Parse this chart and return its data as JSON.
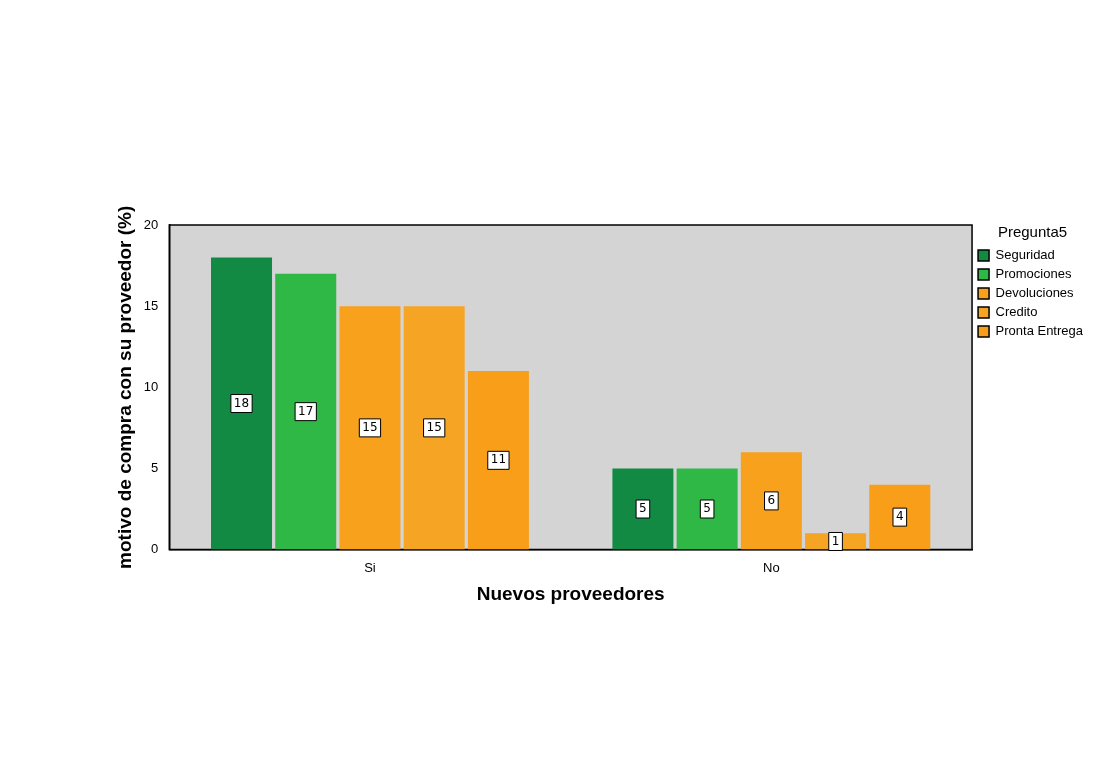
{
  "chart_data": {
    "type": "bar",
    "xlabel": "Nuevos proveedores",
    "ylabel": "motivo de compra con su proveedor (%)",
    "legend_title": "Pregunta5",
    "categories": [
      "Si",
      "No"
    ],
    "series": [
      {
        "name": "Seguridad",
        "color": "#138a43",
        "values": [
          18,
          5
        ]
      },
      {
        "name": "Promociones",
        "color": "#2fb845",
        "values": [
          17,
          5
        ]
      },
      {
        "name": "Devoluciones",
        "color": "#f7a11d",
        "values": [
          15,
          6
        ]
      },
      {
        "name": "Credito",
        "color": "#f5a423",
        "values": [
          15,
          1
        ]
      },
      {
        "name": "Pronta Entrega",
        "color": "#f99e19",
        "values": [
          11,
          4
        ]
      }
    ],
    "ylim": [
      0,
      20
    ],
    "yticks": [
      0,
      5,
      10,
      15,
      20
    ],
    "grid": false,
    "legend": "top right",
    "data_labels": true
  }
}
